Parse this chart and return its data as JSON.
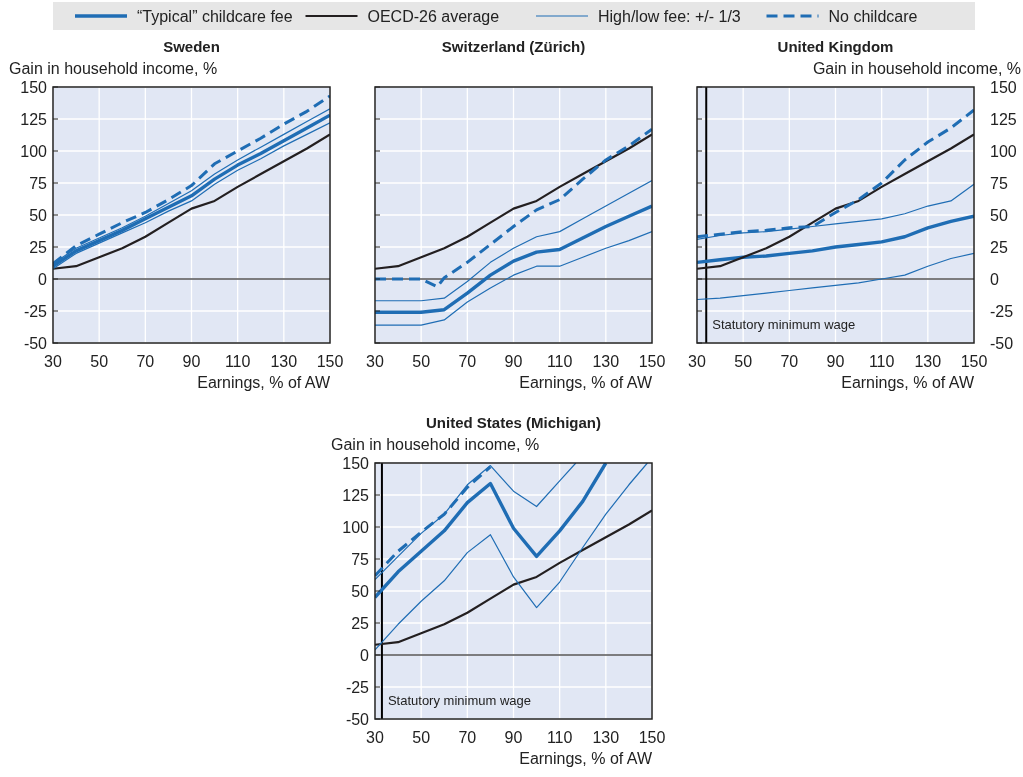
{
  "chart_data": [
    {
      "type": "line",
      "title": "Sweden",
      "ylabel": "Gain in household income, %",
      "xlabel": "Earnings, % of AW",
      "xlim": [
        30,
        150
      ],
      "xticks": [
        30,
        50,
        70,
        90,
        110,
        130,
        150
      ],
      "ylim": [
        -50,
        150
      ],
      "yticks": [
        -50,
        -25,
        0,
        25,
        50,
        75,
        100,
        125,
        150
      ],
      "grid": true,
      "legend": "top",
      "x": [
        30,
        40,
        50,
        60,
        70,
        80,
        90,
        100,
        110,
        120,
        130,
        140,
        150
      ],
      "ref_lines": [
        {
          "axis": "y",
          "value": 0,
          "color": "#000000"
        }
      ],
      "series": [
        {
          "name": "“Typical” childcare fee",
          "color": "#1f6db4",
          "values": [
            10,
            22,
            30,
            38,
            47,
            56,
            65,
            78,
            89,
            98,
            108,
            118,
            128
          ]
        },
        {
          "name": "OECD-26 average",
          "color": "#231f20",
          "values": [
            8,
            10,
            17,
            24,
            33,
            44,
            55,
            61,
            72,
            82,
            92,
            102,
            113
          ]
        },
        {
          "name": "High/low fee: +/- 1/3",
          "color": "#1f6db4",
          "values": [
            12,
            24,
            32,
            40,
            49,
            59,
            69,
            82,
            93,
            103,
            113,
            123,
            133
          ]
        },
        {
          "color": "#1f6db4",
          "values": [
            8,
            20,
            28,
            36,
            44,
            53,
            61,
            74,
            85,
            94,
            104,
            113,
            122
          ]
        },
        {
          "name": "No childcare",
          "color": "#1f6db4",
          "line_style": "dashed",
          "values": [
            12,
            26,
            35,
            44,
            52,
            62,
            73,
            90,
            100,
            110,
            121,
            131,
            143
          ]
        }
      ]
    },
    {
      "type": "line",
      "title": "Switzerland (Zürich)",
      "xlabel": "Earnings, % of AW",
      "xlim": [
        30,
        150
      ],
      "xticks": [
        30,
        50,
        70,
        90,
        110,
        130,
        150
      ],
      "ylim": [
        -50,
        150
      ],
      "yticks": [
        -50,
        -25,
        0,
        25,
        50,
        75,
        100,
        125,
        150
      ],
      "tick_labels": "x",
      "grid": true,
      "x": [
        30,
        40,
        50,
        60,
        70,
        80,
        90,
        100,
        110,
        120,
        130,
        140,
        150
      ],
      "ref_lines": [
        {
          "axis": "y",
          "value": 0,
          "color": "#000000"
        }
      ],
      "series": [
        {
          "color": "#1f6db4",
          "values": [
            -26,
            -26,
            -26,
            -24,
            -11,
            3,
            14,
            21,
            23,
            32,
            41,
            49,
            57
          ]
        },
        {
          "color": "#231f20",
          "values": [
            8,
            10,
            17,
            24,
            33,
            44,
            55,
            61,
            72,
            82,
            92,
            102,
            113
          ]
        },
        {
          "color": "#1f6db4",
          "values": [
            -17,
            -17,
            -17,
            -15,
            -2,
            13,
            24,
            33,
            37,
            47,
            57,
            67,
            77
          ]
        },
        {
          "color": "#1f6db4",
          "values": [
            -36,
            -36,
            -36,
            -32,
            -18,
            -7,
            3,
            10,
            10,
            17,
            24,
            30,
            37
          ]
        },
        {
          "color": "#1f6db4",
          "line_style": "dashed",
          "x": [
            30,
            40,
            50,
            57,
            60,
            70,
            80,
            90,
            100,
            110,
            120,
            130,
            140,
            150
          ],
          "values": [
            0,
            0,
            0,
            -6,
            1,
            13,
            27,
            41,
            54,
            62,
            78,
            93,
            104,
            117
          ]
        }
      ]
    },
    {
      "type": "line",
      "title": "United Kingdom",
      "y2label": "Gain in household income, %",
      "xlabel": "Earnings, % of AW",
      "xlim": [
        30,
        150
      ],
      "xticks": [
        30,
        50,
        70,
        90,
        110,
        130,
        150
      ],
      "y2lim": [
        -50,
        150
      ],
      "y2ticks": [
        -50,
        -25,
        0,
        25,
        50,
        75,
        100,
        125,
        150
      ],
      "grid": true,
      "x": [
        30,
        40,
        50,
        60,
        70,
        80,
        90,
        100,
        110,
        120,
        130,
        140,
        150
      ],
      "ref_lines": [
        {
          "axis": "y2",
          "value": 0,
          "color": "#000000"
        },
        {
          "axis": "x",
          "value": 34,
          "label": "Statutory minimum wage",
          "color": "#000000"
        }
      ],
      "series": [
        {
          "color": "#1f6db4",
          "axis": "y2",
          "values": [
            13,
            15,
            17,
            18,
            20,
            22,
            25,
            27,
            29,
            33,
            40,
            45,
            49
          ]
        },
        {
          "color": "#231f20",
          "axis": "y2",
          "values": [
            8,
            10,
            17,
            24,
            33,
            44,
            55,
            61,
            72,
            82,
            92,
            102,
            113
          ]
        },
        {
          "color": "#1f6db4",
          "axis": "y2",
          "values": [
            31,
            34,
            36,
            37,
            39,
            41,
            43,
            45,
            47,
            51,
            57,
            61,
            74
          ]
        },
        {
          "color": "#1f6db4",
          "axis": "y2",
          "values": [
            -16,
            -15,
            -13,
            -11,
            -9,
            -7,
            -5,
            -3,
            0,
            3,
            10,
            16,
            20
          ]
        },
        {
          "color": "#1f6db4",
          "axis": "y2",
          "line_style": "dashed",
          "values": [
            33,
            35,
            37,
            38,
            40,
            41,
            52,
            62,
            75,
            93,
            107,
            118,
            132
          ]
        }
      ]
    },
    {
      "type": "line",
      "title": "United States (Michigan)",
      "ylabel": "Gain in household income, %",
      "xlabel": "Earnings, % of AW",
      "xlim": [
        30,
        150
      ],
      "xticks": [
        30,
        50,
        70,
        90,
        110,
        130,
        150
      ],
      "ylim": [
        -50,
        150
      ],
      "yticks": [
        -50,
        -25,
        0,
        25,
        50,
        75,
        100,
        125,
        150
      ],
      "grid": true,
      "x": [
        30,
        40,
        50,
        60,
        70,
        80,
        90,
        100,
        110,
        120,
        130,
        140,
        150
      ],
      "ref_lines": [
        {
          "axis": "y",
          "value": 0,
          "color": "#000000"
        },
        {
          "axis": "x",
          "value": 33,
          "label": "Statutory minimum wage",
          "color": "#000000"
        }
      ],
      "series": [
        {
          "color": "#1f6db4",
          "x": [
            30,
            40,
            50,
            60,
            70,
            80,
            90,
            100,
            110,
            120,
            130
          ],
          "values": [
            45,
            65,
            81,
            97,
            119,
            134,
            99,
            77,
            97,
            120,
            150
          ]
        },
        {
          "color": "#231f20",
          "values": [
            8,
            10,
            17,
            24,
            33,
            44,
            55,
            61,
            72,
            82,
            92,
            102,
            113
          ]
        },
        {
          "color": "#1f6db4",
          "x": [
            30,
            40,
            50,
            60,
            70,
            80,
            90,
            100,
            110,
            117
          ],
          "values": [
            59,
            77,
            95,
            110,
            133,
            148,
            128,
            116,
            136,
            150
          ]
        },
        {
          "color": "#1f6db4",
          "x": [
            30,
            40,
            50,
            60,
            70,
            80,
            90,
            100,
            110,
            120,
            130,
            140,
            148
          ],
          "values": [
            4,
            24,
            42,
            58,
            80,
            94,
            61,
            37,
            57,
            84,
            110,
            133,
            150
          ]
        },
        {
          "color": "#1f6db4",
          "line_style": "dashed",
          "x": [
            30,
            40,
            50,
            60,
            70,
            80
          ],
          "values": [
            62,
            81,
            96,
            110,
            131,
            147
          ]
        }
      ]
    }
  ]
}
